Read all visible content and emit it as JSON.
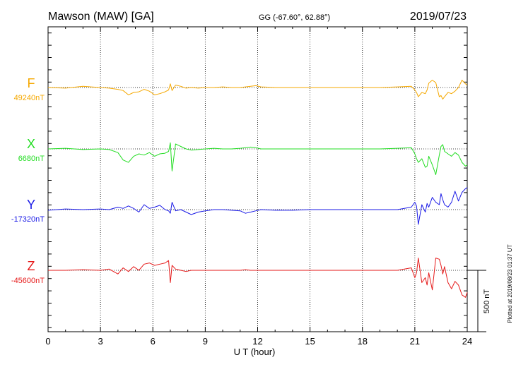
{
  "chart_data": {
    "type": "line",
    "title": "Mawson (MAW)  [GA]",
    "coords": "GG (-67.60°,  62.88°)",
    "date": "2019/07/23",
    "xlabel": "U T (hour)",
    "xlim": [
      0,
      24
    ],
    "x_ticks": [
      "0",
      "3",
      "6",
      "9",
      "12",
      "15",
      "18",
      "21",
      "24"
    ],
    "grid": "dotted vertical at 3-hour intervals",
    "scale_bar": {
      "label": "500 nT",
      "value_nT": 500
    },
    "footer": "Plotted at 2019/08/23 01:37 UT",
    "series": [
      {
        "name": "F",
        "baseline_label": "49240nT",
        "baseline_nT": 49240,
        "color": "#f5a800",
        "x": [
          0,
          1,
          2,
          3,
          3.5,
          4,
          4.3,
          4.6,
          4.9,
          5.2,
          5.5,
          5.8,
          6.1,
          6.4,
          6.7,
          6.9,
          7.0,
          7.1,
          7.3,
          7.6,
          7.9,
          8.2,
          8.6,
          9,
          9.5,
          10,
          10.5,
          11,
          11.3,
          11.6,
          11.9,
          12.2,
          13,
          14,
          15,
          16,
          17,
          18,
          19,
          20,
          20.8,
          21.0,
          21.1,
          21.2,
          21.4,
          21.6,
          21.7,
          21.8,
          22.0,
          22.2,
          22.4,
          22.5,
          22.6,
          22.7,
          22.9,
          23.1,
          23.3,
          23.5,
          23.7,
          23.9,
          24
        ],
        "values": [
          0,
          -5,
          10,
          0,
          -5,
          -15,
          -25,
          -60,
          -40,
          -35,
          -15,
          -30,
          -60,
          -50,
          -35,
          -20,
          30,
          -25,
          20,
          10,
          -5,
          0,
          -5,
          0,
          0,
          5,
          0,
          0,
          5,
          10,
          15,
          5,
          0,
          0,
          0,
          0,
          0,
          0,
          0,
          5,
          10,
          -20,
          -40,
          -75,
          -40,
          -50,
          -20,
          35,
          60,
          40,
          -75,
          -65,
          -95,
          -75,
          -40,
          -50,
          -30,
          0,
          60,
          30,
          20
        ]
      },
      {
        "name": "X",
        "baseline_label": "6680nT",
        "baseline_nT": 6680,
        "color": "#22dd22",
        "x": [
          0,
          1,
          2,
          3,
          3.5,
          4,
          4.3,
          4.6,
          4.9,
          5.2,
          5.5,
          5.8,
          6.1,
          6.4,
          6.7,
          6.9,
          7.0,
          7.1,
          7.3,
          7.6,
          7.9,
          8.2,
          8.6,
          9,
          9.5,
          10,
          10.5,
          11,
          11.3,
          11.6,
          11.9,
          12.2,
          13,
          14,
          15,
          16,
          17,
          18,
          19,
          20,
          20.8,
          21.0,
          21.1,
          21.2,
          21.4,
          21.6,
          21.7,
          21.8,
          22.0,
          22.2,
          22.4,
          22.5,
          22.6,
          22.7,
          22.9,
          23.1,
          23.3,
          23.5,
          23.7,
          23.9,
          24
        ],
        "values": [
          0,
          5,
          -5,
          0,
          -5,
          -30,
          -90,
          -110,
          -60,
          -40,
          -50,
          -30,
          -60,
          -40,
          -35,
          -20,
          50,
          -180,
          40,
          20,
          0,
          -10,
          -5,
          0,
          5,
          0,
          0,
          5,
          10,
          15,
          10,
          0,
          0,
          0,
          0,
          0,
          0,
          0,
          0,
          5,
          10,
          -40,
          -80,
          -110,
          -80,
          -150,
          -140,
          -60,
          -130,
          -210,
          -50,
          20,
          35,
          -20,
          -40,
          -60,
          -30,
          -50,
          -110,
          -140,
          -130
        ]
      },
      {
        "name": "Y",
        "baseline_label": "-17320nT",
        "baseline_nT": -17320,
        "color": "#1a1ae6",
        "x": [
          0,
          1,
          2,
          3,
          3.5,
          4,
          4.3,
          4.6,
          4.9,
          5.2,
          5.5,
          5.8,
          6.1,
          6.4,
          6.7,
          6.9,
          7.0,
          7.1,
          7.3,
          7.6,
          7.9,
          8.2,
          8.6,
          9,
          9.5,
          10,
          10.5,
          11,
          11.3,
          11.6,
          11.9,
          12.2,
          13,
          14,
          15,
          16,
          17,
          18,
          19,
          20,
          20.8,
          21.0,
          21.1,
          21.2,
          21.4,
          21.6,
          21.7,
          21.8,
          22.0,
          22.2,
          22.4,
          22.5,
          22.6,
          22.7,
          22.9,
          23.1,
          23.3,
          23.5,
          23.7,
          23.9,
          24
        ],
        "values": [
          -5,
          5,
          0,
          5,
          0,
          20,
          10,
          30,
          10,
          -20,
          40,
          10,
          20,
          35,
          0,
          -10,
          -30,
          60,
          -10,
          0,
          -20,
          -40,
          -20,
          -10,
          0,
          0,
          -5,
          -10,
          -30,
          -20,
          -10,
          0,
          -5,
          -5,
          0,
          0,
          0,
          0,
          0,
          0,
          20,
          60,
          30,
          -120,
          40,
          -20,
          50,
          20,
          100,
          60,
          40,
          130,
          80,
          40,
          20,
          60,
          150,
          70,
          140,
          170,
          180
        ]
      },
      {
        "name": "Z",
        "baseline_label": "-45600nT",
        "baseline_nT": -45600,
        "color": "#e61a1a",
        "x": [
          0,
          1,
          2,
          3,
          3.5,
          4,
          4.3,
          4.6,
          4.9,
          5.2,
          5.5,
          5.8,
          6.1,
          6.4,
          6.7,
          6.9,
          7.0,
          7.1,
          7.3,
          7.6,
          7.9,
          8.2,
          8.6,
          9,
          9.5,
          10,
          10.5,
          11,
          11.3,
          11.6,
          11.9,
          12.2,
          13,
          14,
          15,
          16,
          17,
          18,
          19,
          20,
          20.8,
          21.0,
          21.1,
          21.2,
          21.4,
          21.6,
          21.7,
          21.8,
          22.0,
          22.2,
          22.4,
          22.5,
          22.6,
          22.7,
          22.9,
          23.1,
          23.3,
          23.5,
          23.7,
          23.9,
          24
        ],
        "values": [
          0,
          0,
          5,
          0,
          10,
          -30,
          20,
          -10,
          30,
          0,
          50,
          60,
          40,
          50,
          60,
          80,
          -100,
          40,
          10,
          0,
          -10,
          0,
          0,
          0,
          0,
          0,
          0,
          0,
          5,
          0,
          0,
          0,
          0,
          0,
          0,
          0,
          0,
          0,
          0,
          0,
          20,
          -60,
          -20,
          100,
          -100,
          -60,
          -120,
          -20,
          -160,
          100,
          90,
          40,
          -30,
          30,
          -100,
          -150,
          -90,
          -120,
          -200,
          -220,
          -180
        ]
      }
    ]
  }
}
